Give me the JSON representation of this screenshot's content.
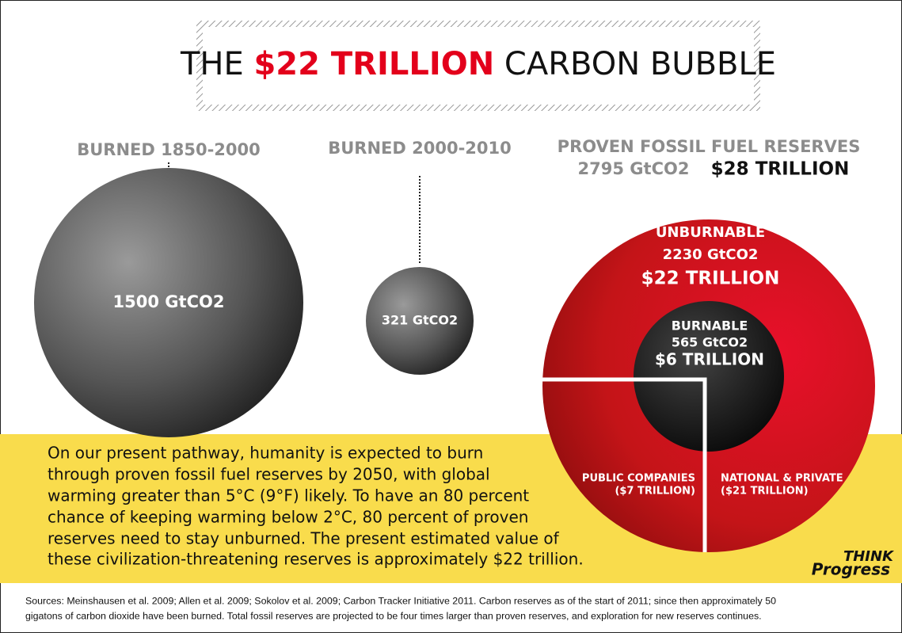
{
  "title": {
    "prefix": "THE",
    "highlight": "$22 TRILLION",
    "suffix": "CARBON BUBBLE"
  },
  "burned_1850_2000": {
    "heading": "BURNED 1850-2000",
    "label": "1500 GtCO2"
  },
  "burned_2000_2010": {
    "heading": "BURNED 2000-2010",
    "label": "321 GtCO2"
  },
  "reserves": {
    "heading": "PROVEN FOSSIL FUEL RESERVES",
    "amount": "2795 GtCO2",
    "value": "$28 TRILLION",
    "unburnable": {
      "label": "UNBURNABLE",
      "amount": "2230 GtCO2",
      "value": "$22 TRILLION"
    },
    "burnable": {
      "label": "BURNABLE",
      "amount": "565 GtCO2",
      "value": "$6 TRILLION"
    },
    "public": {
      "label": "PUBLIC COMPANIES",
      "value": "($7 TRILLION)"
    },
    "national": {
      "label": "NATIONAL & PRIVATE",
      "value": "($21 TRILLION)"
    }
  },
  "paragraph": [
    "On our present pathway, humanity is expected to burn",
    "through proven fossil fuel reserves by 2050, with global",
    "warming greater than 5°C (9°F) likely. To have an 80 percent",
    "chance of keeping warming below 2°C, 80 percent of proven",
    "reserves need to stay unburned.  The present estimated value of",
    "these civilization-threatening reserves is approximately $22 trillion."
  ],
  "logo": [
    "THINK",
    "Progress"
  ],
  "sources": [
    "Sources: Meinshausen et al. 2009; Allen et al. 2009; Sokolov et al. 2009; Carbon Tracker Initiative 2011. Carbon reserves as of the start of 2011; since then approximately 50",
    "gigatons of carbon dioxide have been burned. Total fossil reserves are projected to be four times larger than proven reserves, and exploration for new reserves continues."
  ]
}
